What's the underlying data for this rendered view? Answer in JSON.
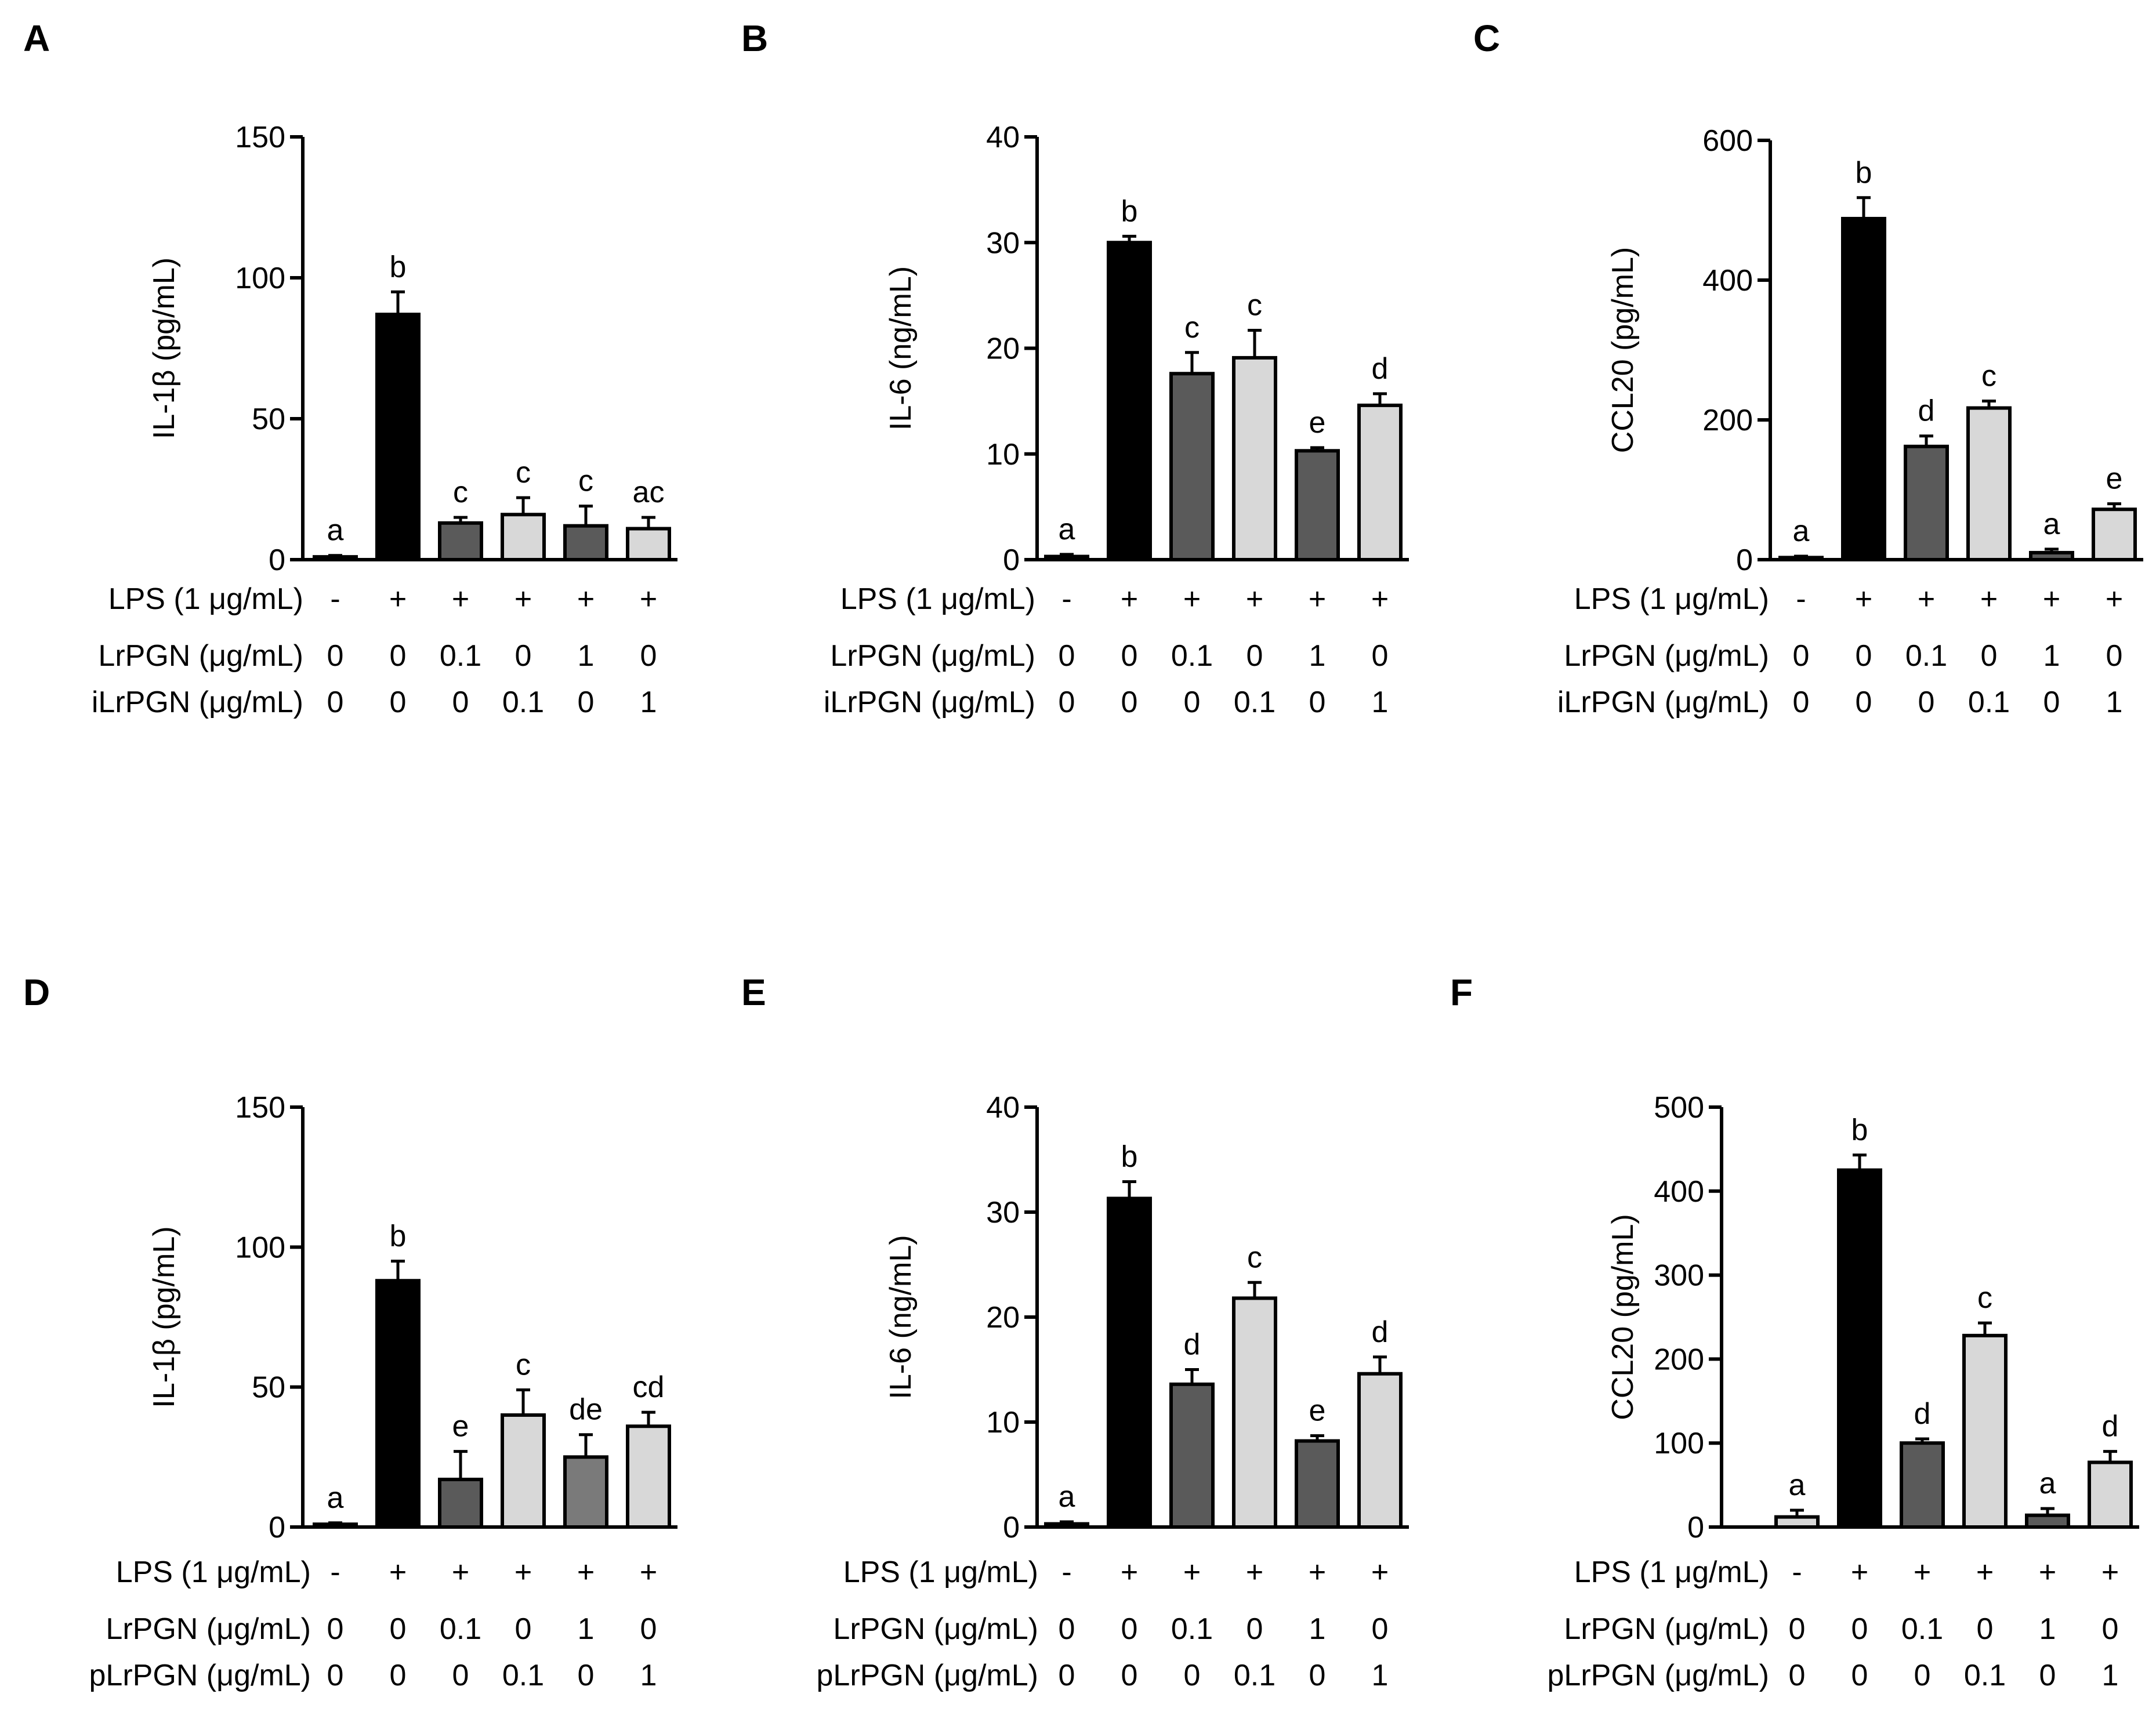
{
  "colors": {
    "black": "#000000",
    "dark": "#5a5a5a",
    "light": "#d8d8d8",
    "mid": "#7a7a7a"
  },
  "chart_data": [
    {
      "panel": "A",
      "type": "bar",
      "ylabel": "IL-1β (pg/mL)",
      "ylim": [
        0,
        150
      ],
      "yticks": [
        0,
        50,
        100,
        150
      ],
      "values": [
        1,
        87,
        13,
        16,
        12,
        11
      ],
      "errors": [
        0.5,
        8,
        2,
        6,
        7,
        4
      ],
      "sig": [
        "a",
        "b",
        "c",
        "c",
        "c",
        "ac"
      ],
      "fills": [
        "light",
        "black",
        "dark",
        "light",
        "dark",
        "light"
      ],
      "rows": [
        {
          "label": "LPS (1 μg/mL)",
          "values": [
            "-",
            "+",
            "+",
            "+",
            "+",
            "+"
          ]
        },
        {
          "label": "LrPGN (μg/mL)",
          "values": [
            "0",
            "0",
            "0.1",
            "0",
            "1",
            "0"
          ]
        },
        {
          "label": "iLrPGN (μg/mL)",
          "values": [
            "0",
            "0",
            "0",
            "0.1",
            "0",
            "1"
          ]
        }
      ]
    },
    {
      "panel": "B",
      "type": "bar",
      "ylabel": "IL-6 (ng/mL)",
      "ylim": [
        0,
        40
      ],
      "yticks": [
        0,
        10,
        20,
        30,
        40
      ],
      "values": [
        0.3,
        30,
        17.6,
        19.1,
        10.3,
        14.6
      ],
      "errors": [
        0.2,
        0.6,
        2.0,
        2.6,
        0.3,
        1.1
      ],
      "sig": [
        "a",
        "b",
        "c",
        "c",
        "e",
        "d"
      ],
      "fills": [
        "light",
        "black",
        "dark",
        "light",
        "dark",
        "light"
      ],
      "rows": [
        {
          "label": "LPS (1 μg/mL)",
          "values": [
            "-",
            "+",
            "+",
            "+",
            "+",
            "+"
          ]
        },
        {
          "label": "LrPGN (μg/mL)",
          "values": [
            "0",
            "0",
            "0.1",
            "0",
            "1",
            "0"
          ]
        },
        {
          "label": "iLrPGN (μg/mL)",
          "values": [
            "0",
            "0",
            "0",
            "0.1",
            "0",
            "1"
          ]
        }
      ]
    },
    {
      "panel": "C",
      "type": "bar",
      "ylabel": "CCL20 (pg/mL)",
      "ylim": [
        0,
        600
      ],
      "yticks": [
        0,
        200,
        400,
        600
      ],
      "values": [
        3,
        488,
        162,
        217,
        10,
        72
      ],
      "errors": [
        2,
        30,
        15,
        10,
        5,
        8
      ],
      "sig": [
        "a",
        "b",
        "d",
        "c",
        "a",
        "e"
      ],
      "fills": [
        "light",
        "black",
        "dark",
        "light",
        "dark",
        "light"
      ],
      "rows": [
        {
          "label": "LPS (1 μg/mL)",
          "values": [
            "-",
            "+",
            "+",
            "+",
            "+",
            "+"
          ]
        },
        {
          "label": "LrPGN (μg/mL)",
          "values": [
            "0",
            "0",
            "0.1",
            "0",
            "1",
            "0"
          ]
        },
        {
          "label": "iLrPGN (μg/mL)",
          "values": [
            "0",
            "0",
            "0",
            "0.1",
            "0",
            "1"
          ]
        }
      ]
    },
    {
      "panel": "D",
      "type": "bar",
      "ylabel": "IL-1β (pg/mL)",
      "ylim": [
        0,
        150
      ],
      "yticks": [
        0,
        50,
        100,
        150
      ],
      "values": [
        1,
        88,
        17,
        40,
        25,
        36
      ],
      "errors": [
        0.5,
        7,
        10,
        9,
        8,
        5
      ],
      "sig": [
        "a",
        "b",
        "e",
        "c",
        "de",
        "cd"
      ],
      "fills": [
        "light",
        "black",
        "dark",
        "light",
        "mid",
        "light"
      ],
      "rows": [
        {
          "label": "LPS (1 μg/mL)",
          "values": [
            "-",
            "+",
            "+",
            "+",
            "+",
            "+"
          ]
        },
        {
          "label": "LrPGN (μg/mL)",
          "values": [
            "0",
            "0",
            "0.1",
            "0",
            "1",
            "0"
          ]
        },
        {
          "label": "pLrPGN (μg/mL)",
          "values": [
            "0",
            "0",
            "0",
            "0.1",
            "0",
            "1"
          ]
        }
      ]
    },
    {
      "panel": "E",
      "type": "bar",
      "ylabel": "IL-6 (ng/mL)",
      "ylim": [
        0,
        40
      ],
      "yticks": [
        0,
        10,
        20,
        30,
        40
      ],
      "values": [
        0.3,
        31.3,
        13.6,
        21.8,
        8.2,
        14.6
      ],
      "errors": [
        0.2,
        1.6,
        1.4,
        1.5,
        0.5,
        1.6
      ],
      "sig": [
        "a",
        "b",
        "d",
        "c",
        "e",
        "d"
      ],
      "fills": [
        "light",
        "black",
        "dark",
        "light",
        "dark",
        "light"
      ],
      "rows": [
        {
          "label": "LPS (1 μg/mL)",
          "values": [
            "-",
            "+",
            "+",
            "+",
            "+",
            "+"
          ]
        },
        {
          "label": "LrPGN (μg/mL)",
          "values": [
            "0",
            "0",
            "0.1",
            "0",
            "1",
            "0"
          ]
        },
        {
          "label": "pLrPGN (μg/mL)",
          "values": [
            "0",
            "0",
            "0",
            "0.1",
            "0",
            "1"
          ]
        }
      ]
    },
    {
      "panel": "F",
      "type": "bar",
      "ylabel": "CCL20 (pg/mL)",
      "ylim": [
        0,
        500
      ],
      "yticks": [
        0,
        100,
        200,
        300,
        400,
        500
      ],
      "values": [
        12,
        425,
        100,
        228,
        14,
        77
      ],
      "errors": [
        8,
        18,
        5,
        15,
        8,
        13
      ],
      "sig": [
        "a",
        "b",
        "d",
        "c",
        "a",
        "d"
      ],
      "fills": [
        "light",
        "black",
        "dark",
        "light",
        "dark",
        "light"
      ],
      "rows": [
        {
          "label": "LPS (1 μg/mL)",
          "values": [
            "-",
            "+",
            "+",
            "+",
            "+",
            "+"
          ]
        },
        {
          "label": "LrPGN (μg/mL)",
          "values": [
            "0",
            "0",
            "0.1",
            "0",
            "1",
            "0"
          ]
        },
        {
          "label": "pLrPGN (μg/mL)",
          "values": [
            "0",
            "0",
            "0",
            "0.1",
            "0",
            "1"
          ]
        }
      ]
    }
  ]
}
